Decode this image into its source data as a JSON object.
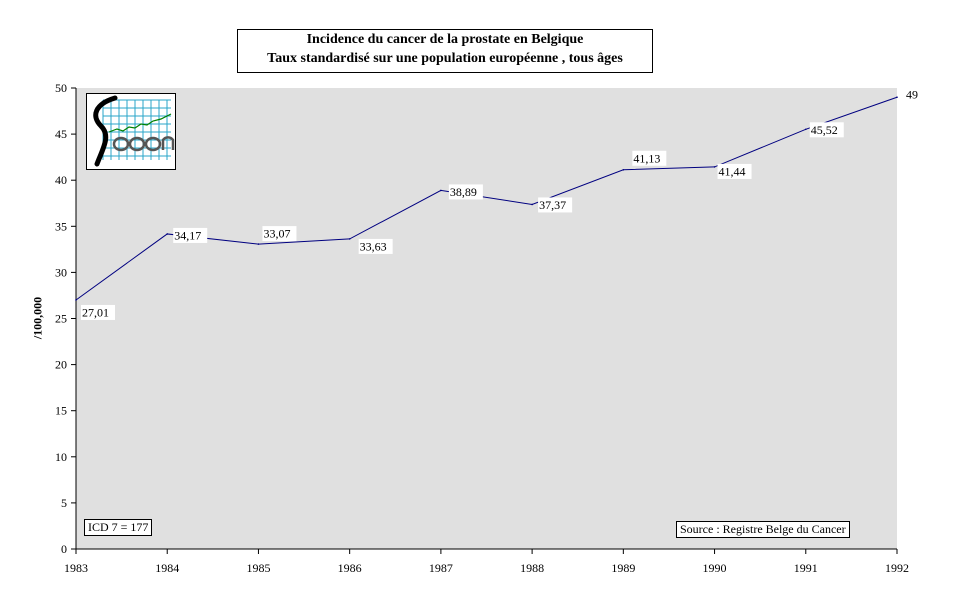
{
  "title": {
    "line1": "Incidence du  cancer de la prostate   en Belgique",
    "line2": "Taux standardisé sur une population européenne , tous âges"
  },
  "notes": {
    "icd": "ICD 7 = 177",
    "source": "Source : Registre Belge du Cancer"
  },
  "colors": {
    "plot_background": "#e0e0e0",
    "line": "#000080",
    "logo_grid": "#2aa6c8",
    "logo_trend": "#008000"
  },
  "logo": {
    "icon": "registry-logo-icon"
  },
  "chart_data": {
    "type": "line",
    "x": [
      "1983",
      "1984",
      "1985",
      "1986",
      "1987",
      "1988",
      "1989",
      "1990",
      "1991",
      "1992"
    ],
    "series": [
      {
        "values": [
          27.01,
          34.17,
          33.07,
          33.63,
          38.89,
          37.37,
          41.13,
          41.44,
          45.52,
          49
        ]
      }
    ],
    "data_labels": [
      "27,01",
      "34,17",
      "33,07",
      "33,63",
      "38,89",
      "37,37",
      "41,13",
      "41,44",
      "45,52",
      "49"
    ],
    "title": "Incidence du  cancer de la prostate   en Belgique",
    "subtitle": "Taux standardisé sur une population européenne , tous âges",
    "xlabel": "",
    "ylabel": "/100,000",
    "ylim": [
      0,
      50
    ],
    "yticks": [
      0,
      5,
      10,
      15,
      20,
      25,
      30,
      35,
      40,
      45,
      50
    ],
    "grid": false,
    "legend": "none"
  }
}
